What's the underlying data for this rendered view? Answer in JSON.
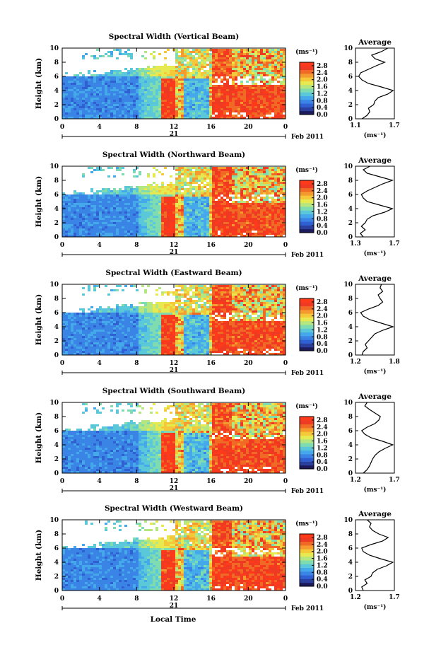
{
  "figure": {
    "xlabel": "Local Time",
    "date_label": "Feb 2011",
    "day_label": "21",
    "units_label": "(ms⁻¹)",
    "average_title": "Average",
    "average_xlabel": "(ms⁻¹)"
  },
  "colors": {
    "colormap": [
      "#1c1a5a",
      "#2a3f9e",
      "#2f5fd0",
      "#3a84e6",
      "#45a8ea",
      "#5ac8d8",
      "#7fdcb0",
      "#b5e680",
      "#e6ea50",
      "#f5c83a",
      "#f59a2e",
      "#f06a26",
      "#ee3a22",
      "#ff3a1a"
    ]
  },
  "chart_data": [
    {
      "type": "heatmap",
      "title": "Spectral Width (Vertical Beam)",
      "ylabel": "Height (km)",
      "xlim": [
        0,
        24
      ],
      "ylim": [
        0,
        10
      ],
      "xticks": [
        "0",
        "4",
        "8",
        "12",
        "16",
        "20",
        "0"
      ],
      "yticks": [
        "0",
        "2",
        "4",
        "6",
        "8",
        "10"
      ],
      "colorbar": {
        "ticks": [
          "0.0",
          "0.4",
          "0.8",
          "1.2",
          "1.6",
          "2.0",
          "2.4",
          "2.8"
        ],
        "range": [
          0.0,
          3.0
        ]
      },
      "average": {
        "xticks": [
          "1.1",
          "1.7"
        ],
        "xlim": [
          1.1,
          1.7
        ],
        "height": [
          0,
          0.5,
          1,
          1.5,
          2,
          2.5,
          3,
          3.5,
          4,
          4.5,
          5,
          5.5,
          6,
          6.5,
          7,
          7.5,
          8,
          8.5,
          9,
          9.5,
          10
        ],
        "values": [
          1.2,
          1.28,
          1.32,
          1.3,
          1.38,
          1.4,
          1.45,
          1.6,
          1.68,
          1.5,
          1.3,
          1.2,
          1.15,
          1.18,
          1.3,
          1.42,
          1.55,
          1.4,
          1.35,
          1.5,
          1.6
        ]
      }
    },
    {
      "type": "heatmap",
      "title": "Spectral Width (Northward Beam)",
      "ylabel": "Height (km)",
      "xlim": [
        0,
        24
      ],
      "ylim": [
        0,
        10
      ],
      "xticks": [
        "0",
        "4",
        "8",
        "12",
        "16",
        "20",
        "0"
      ],
      "yticks": [
        "0",
        "2",
        "4",
        "6",
        "8",
        "10"
      ],
      "colorbar": {
        "ticks": [
          "0.0",
          "0.4",
          "0.8",
          "1.2",
          "1.6",
          "2.0",
          "2.4",
          "2.8"
        ],
        "range": [
          0.0,
          3.0
        ]
      },
      "average": {
        "xticks": [
          "1.3",
          "1.7"
        ],
        "xlim": [
          1.3,
          1.7
        ],
        "height": [
          0,
          0.5,
          1,
          1.5,
          2,
          2.5,
          3,
          3.5,
          4,
          4.5,
          5,
          5.5,
          6,
          6.5,
          7,
          7.5,
          8,
          8.5,
          9,
          9.5,
          10
        ],
        "values": [
          1.38,
          1.35,
          1.4,
          1.36,
          1.4,
          1.42,
          1.48,
          1.6,
          1.68,
          1.55,
          1.42,
          1.38,
          1.36,
          1.42,
          1.5,
          1.58,
          1.68,
          1.55,
          1.42,
          1.38,
          1.45
        ]
      }
    },
    {
      "type": "heatmap",
      "title": "Spectral Width (Eastward Beam)",
      "ylabel": "Height (km)",
      "xlim": [
        0,
        24
      ],
      "ylim": [
        0,
        10
      ],
      "xticks": [
        "0",
        "4",
        "8",
        "12",
        "16",
        "20",
        "0"
      ],
      "yticks": [
        "0",
        "2",
        "4",
        "6",
        "8",
        "10"
      ],
      "colorbar": {
        "ticks": [
          "0.0",
          "0.4",
          "0.8",
          "1.2",
          "1.6",
          "2.0",
          "2.4",
          "2.8"
        ],
        "range": [
          0.0,
          3.0
        ]
      },
      "average": {
        "xticks": [
          "1.2",
          "1.8"
        ],
        "xlim": [
          1.2,
          1.8
        ],
        "height": [
          0,
          0.5,
          1,
          1.5,
          2,
          2.5,
          3,
          3.5,
          4,
          4.5,
          5,
          5.5,
          6,
          6.5,
          7,
          7.5,
          8,
          8.5,
          9,
          9.5,
          10
        ],
        "values": [
          1.3,
          1.32,
          1.38,
          1.35,
          1.4,
          1.45,
          1.5,
          1.62,
          1.78,
          1.6,
          1.42,
          1.32,
          1.28,
          1.4,
          1.55,
          1.62,
          1.58,
          1.55,
          1.62,
          1.58,
          1.6
        ]
      }
    },
    {
      "type": "heatmap",
      "title": "Spectral Width (Southward Beam)",
      "ylabel": "Height (km)",
      "xlim": [
        0,
        24
      ],
      "ylim": [
        0,
        10
      ],
      "xticks": [
        "0",
        "4",
        "8",
        "12",
        "16",
        "20",
        "0"
      ],
      "yticks": [
        "0",
        "2",
        "4",
        "6",
        "8",
        "10"
      ],
      "colorbar": {
        "ticks": [
          "0.0",
          "0.4",
          "0.8",
          "1.2",
          "1.6",
          "2.0",
          "2.4",
          "2.8"
        ],
        "range": [
          0.0,
          3.0
        ]
      },
      "average": {
        "xticks": [
          "1.2",
          "1.7"
        ],
        "xlim": [
          1.2,
          1.7
        ],
        "height": [
          0,
          0.5,
          1,
          1.5,
          2,
          2.5,
          3,
          3.5,
          4,
          4.5,
          5,
          5.5,
          6,
          6.5,
          7,
          7.5,
          8,
          8.5,
          9,
          9.5,
          10
        ],
        "values": [
          1.3,
          1.35,
          1.38,
          1.4,
          1.42,
          1.45,
          1.5,
          1.58,
          1.68,
          1.55,
          1.4,
          1.32,
          1.28,
          1.35,
          1.45,
          1.5,
          1.52,
          1.45,
          1.38,
          1.32,
          1.35
        ]
      }
    },
    {
      "type": "heatmap",
      "title": "Spectral Width (Westward Beam)",
      "ylabel": "Height (km)",
      "xlim": [
        0,
        24
      ],
      "ylim": [
        0,
        10
      ],
      "xticks": [
        "0",
        "4",
        "8",
        "12",
        "16",
        "20",
        "0"
      ],
      "yticks": [
        "0",
        "2",
        "4",
        "6",
        "8",
        "10"
      ],
      "colorbar": {
        "ticks": [
          "0.0",
          "0.4",
          "0.8",
          "1.2",
          "1.6",
          "2.0",
          "2.4",
          "2.8"
        ],
        "range": [
          0.0,
          3.0
        ]
      },
      "average": {
        "xticks": [
          "1.2",
          "1.7"
        ],
        "xlim": [
          1.2,
          1.7
        ],
        "height": [
          0,
          0.5,
          1,
          1.5,
          2,
          2.5,
          3,
          3.5,
          4,
          4.5,
          5,
          5.5,
          6,
          6.5,
          7,
          7.5,
          8,
          8.5,
          9,
          9.5,
          10
        ],
        "values": [
          1.3,
          1.28,
          1.35,
          1.32,
          1.4,
          1.42,
          1.48,
          1.6,
          1.68,
          1.52,
          1.38,
          1.3,
          1.28,
          1.4,
          1.55,
          1.62,
          1.5,
          1.42,
          1.38,
          1.4,
          1.35
        ]
      }
    }
  ]
}
